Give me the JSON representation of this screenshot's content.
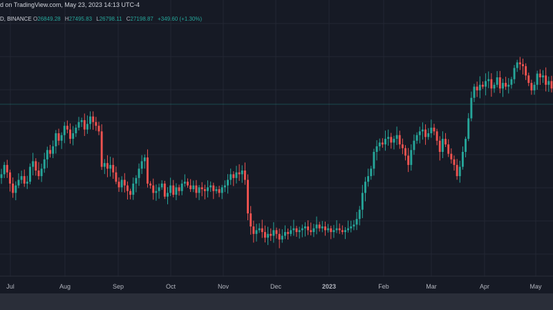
{
  "header": {
    "published_text": "d on TradingView.com, May 23, 2023 14:13 UTC-4"
  },
  "symbol": {
    "name": "D, BINANCE",
    "open_label": "O",
    "open": "26849.28",
    "high_label": "H",
    "high": "27495.83",
    "low_label": "L",
    "low": "26798.11",
    "close_label": "C",
    "close": "27198.87",
    "change": "+349.60 (+1.30%)"
  },
  "colors": {
    "background": "#161a25",
    "up": "#26a69a",
    "down": "#ef5350",
    "axis_text": "#b2b5be",
    "grid": "#232733",
    "last_price_line": "#26a69a"
  },
  "chart_data": {
    "type": "candlestick",
    "x_tick_labels": [
      "Jul",
      "Aug",
      "Sep",
      "Oct",
      "Nov",
      "Dec",
      "2023",
      "Feb",
      "Mar",
      "Apr",
      "May"
    ],
    "y_axis_visible": false,
    "grid": true,
    "last_price_line": true,
    "values": [
      0.38,
      0.43,
      0.39,
      0.33,
      0.28,
      0.32,
      0.35,
      0.37,
      0.33,
      0.34,
      0.42,
      0.45,
      0.4,
      0.37,
      0.41,
      0.46,
      0.51,
      0.49,
      0.53,
      0.6,
      0.56,
      0.59,
      0.64,
      0.62,
      0.57,
      0.6,
      0.63,
      0.66,
      0.67,
      0.62,
      0.65,
      0.69,
      0.66,
      0.64,
      0.61,
      0.42,
      0.44,
      0.41,
      0.43,
      0.39,
      0.34,
      0.31,
      0.35,
      0.32,
      0.29,
      0.27,
      0.33,
      0.36,
      0.41,
      0.45,
      0.47,
      0.33,
      0.32,
      0.28,
      0.29,
      0.31,
      0.33,
      0.26,
      0.28,
      0.32,
      0.27,
      0.31,
      0.29,
      0.33,
      0.34,
      0.32,
      0.3,
      0.32,
      0.28,
      0.31,
      0.3,
      0.29,
      0.31,
      0.32,
      0.29,
      0.3,
      0.28,
      0.31,
      0.32,
      0.35,
      0.38,
      0.36,
      0.39,
      0.38,
      0.4,
      0.35,
      0.17,
      0.1,
      0.06,
      0.08,
      0.09,
      0.07,
      0.04,
      0.06,
      0.05,
      0.08,
      0.06,
      0.03,
      0.05,
      0.07,
      0.06,
      0.08,
      0.09,
      0.07,
      0.08,
      0.09,
      0.1,
      0.08,
      0.07,
      0.09,
      0.11,
      0.09,
      0.1,
      0.08,
      0.09,
      0.07,
      0.08,
      0.09,
      0.08,
      0.07,
      0.08,
      0.09,
      0.1,
      0.11,
      0.14,
      0.19,
      0.28,
      0.34,
      0.37,
      0.41,
      0.5,
      0.53,
      0.55,
      0.54,
      0.57,
      0.58,
      0.55,
      0.57,
      0.59,
      0.54,
      0.52,
      0.48,
      0.43,
      0.51,
      0.56,
      0.59,
      0.61,
      0.62,
      0.58,
      0.6,
      0.63,
      0.61,
      0.56,
      0.5,
      0.57,
      0.54,
      0.49,
      0.46,
      0.43,
      0.37,
      0.42,
      0.5,
      0.57,
      0.68,
      0.79,
      0.85,
      0.83,
      0.86,
      0.85,
      0.88,
      0.89,
      0.84,
      0.86,
      0.9,
      0.84,
      0.87,
      0.85,
      0.86,
      0.89,
      0.95,
      0.98,
      0.97,
      0.96,
      0.91,
      0.87,
      0.83,
      0.86,
      0.92,
      0.9,
      0.91,
      0.86,
      0.88,
      0.84
    ]
  }
}
